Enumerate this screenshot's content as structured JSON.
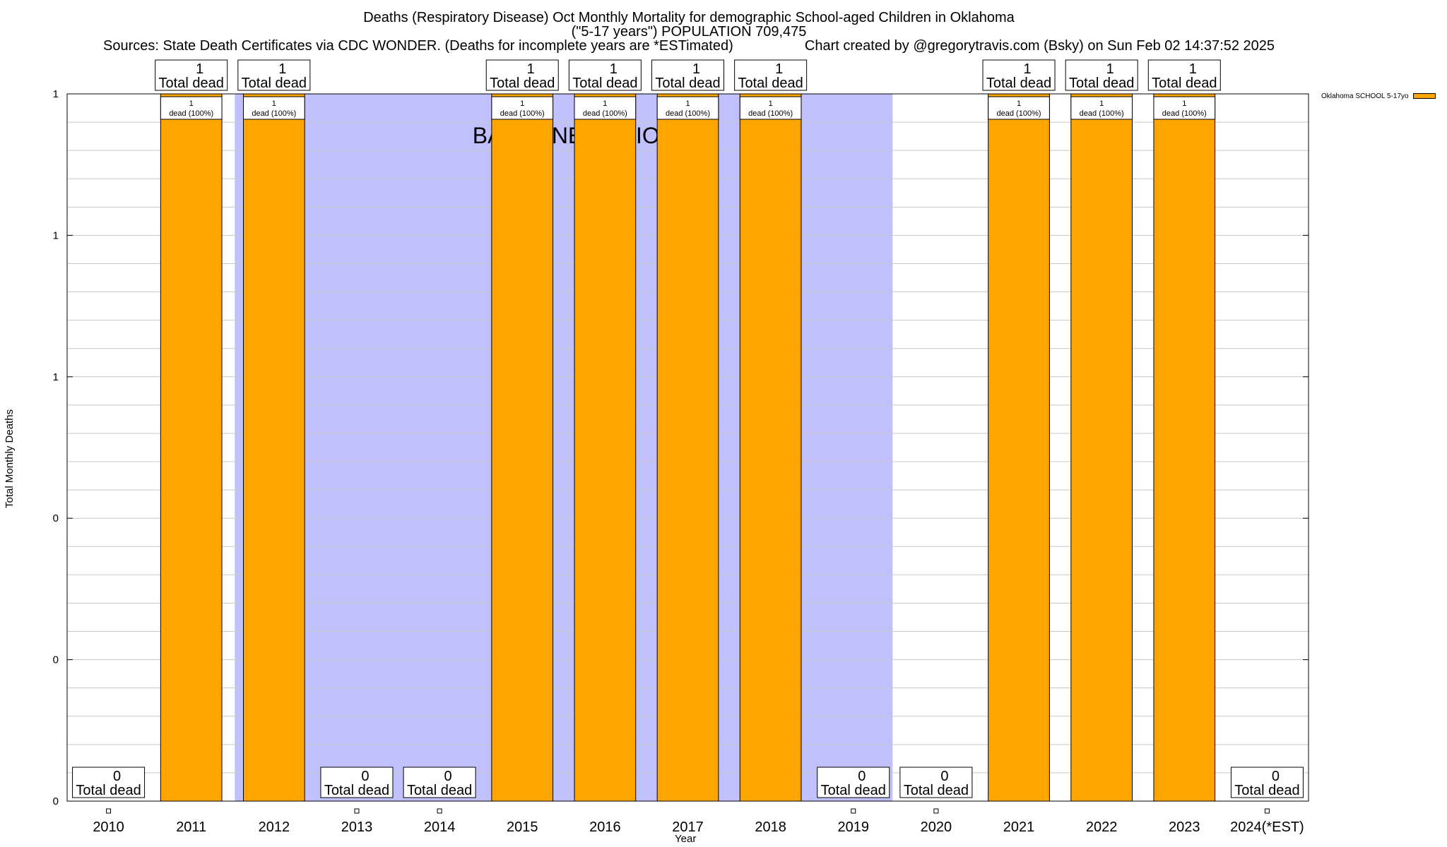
{
  "title": {
    "line1": "Deaths (Respiratory Disease) Oct Monthly Mortality for demographic School-aged Children in Oklahoma",
    "line2": "(\"5-17 years\") POPULATION 709,475",
    "sources": "Sources: State Death Certificates via CDC WONDER. (Deaths for incomplete years are *ESTimated)",
    "credit": "Chart created by @gregorytravis.com (Bsky) on Sun Feb 02 14:37:52 2025"
  },
  "legend": {
    "label": "Oklahoma SCHOOL 5-17yo",
    "color": "#ffa500"
  },
  "baseline": {
    "label": "BASELINE PERIOD",
    "from": "2012",
    "to": "2019",
    "color": "#c0c0fc"
  },
  "chart_data": {
    "type": "bar",
    "title": "Deaths (Respiratory Disease) Oct Monthly Mortality for demographic School-aged Children in Oklahoma",
    "xlabel": "Year",
    "ylabel": "Total Monthly Deaths",
    "categories": [
      "2010",
      "2011",
      "2012",
      "2013",
      "2014",
      "2015",
      "2016",
      "2017",
      "2018",
      "2019",
      "2020",
      "2021",
      "2022",
      "2023",
      "2024(*EST)"
    ],
    "series": [
      {
        "name": "Oklahoma SCHOOL 5-17yo",
        "values": [
          0,
          1,
          1,
          0,
          0,
          1,
          1,
          1,
          1,
          0,
          0,
          1,
          1,
          1,
          0
        ]
      }
    ],
    "ylim": [
      0,
      1
    ],
    "yticks": [
      "0",
      "0",
      "0",
      "1",
      "1",
      "1"
    ],
    "total_label": "Total dead",
    "bar_label": "dead (100%)",
    "grid": true,
    "legend_position": "top-right"
  }
}
